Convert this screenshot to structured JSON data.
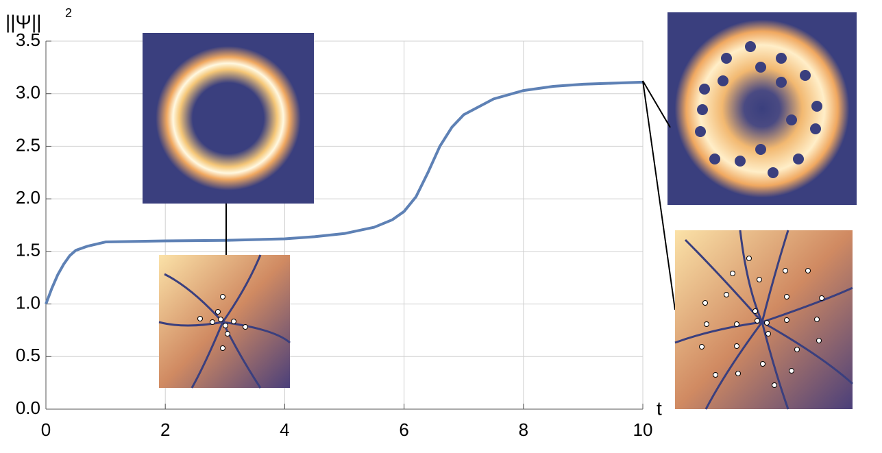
{
  "chart_data": {
    "type": "line",
    "y_label": "||Ψ||",
    "y_label_sup": "2",
    "x_label": "t",
    "x": [
      0,
      0.1,
      0.2,
      0.3,
      0.4,
      0.5,
      0.7,
      1,
      1.5,
      2,
      3,
      4,
      4.5,
      5,
      5.5,
      5.8,
      6,
      6.2,
      6.4,
      6.6,
      6.8,
      7,
      7.5,
      8,
      8.5,
      9,
      10
    ],
    "series": [
      {
        "name": "||Ψ||²",
        "color": "#5e81b5",
        "values": [
          1.0,
          1.15,
          1.28,
          1.38,
          1.46,
          1.51,
          1.55,
          1.59,
          1.595,
          1.6,
          1.605,
          1.62,
          1.64,
          1.67,
          1.73,
          1.8,
          1.88,
          2.02,
          2.25,
          2.5,
          2.68,
          2.8,
          2.95,
          3.03,
          3.07,
          3.09,
          3.11
        ]
      }
    ],
    "xlim": [
      0,
      10
    ],
    "xticks": [
      0,
      2,
      4,
      6,
      8,
      10
    ],
    "ylim": [
      0,
      3.5
    ],
    "yticks": [
      {
        "value": 0,
        "label": "0.0"
      },
      0.5,
      {
        "value": 1,
        "label": "1.0"
      },
      1.5,
      {
        "value": 2,
        "label": "2.0"
      },
      2.5,
      {
        "value": 3,
        "label": "3.0"
      },
      3.5
    ],
    "grid": true
  }
}
